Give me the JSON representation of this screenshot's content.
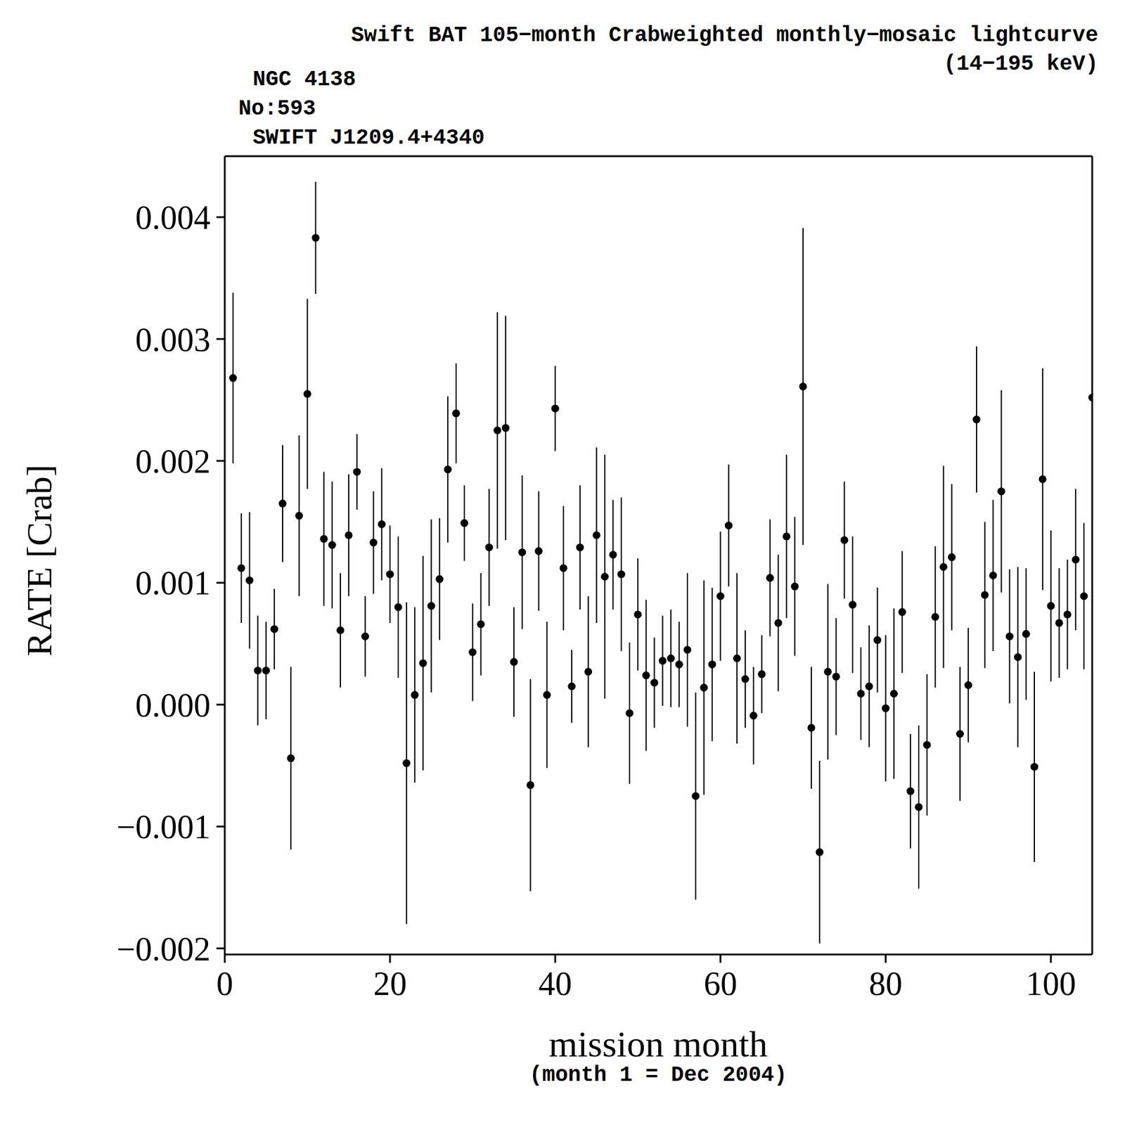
{
  "chart_data": {
    "type": "scatter",
    "title": "Swift BAT 105−month Crabweighted monthly−mosaic lightcurve",
    "subtitle": "(14−195 keV)",
    "annotations": [
      "NGC 4138",
      "No:593",
      "SWIFT J1209.4+4340"
    ],
    "x_label": "mission month",
    "x_sublabel": "(month 1 = Dec 2004)",
    "y_label": "RATE [Crab]",
    "color": "#000000",
    "marker": "circle",
    "xlim": [
      0,
      105
    ],
    "xticks": [
      0,
      20,
      40,
      60,
      80,
      100
    ],
    "ylim": [
      -0.00205,
      0.0045
    ],
    "yticks": [
      {
        "value": -0.002,
        "label": "−0.002"
      },
      {
        "value": -0.001,
        "label": "−0.001"
      },
      {
        "value": 0,
        "label": "0.000"
      },
      {
        "value": 0.001,
        "label": "0.001"
      },
      {
        "value": 0.002,
        "label": "0.002"
      },
      {
        "value": 0.003,
        "label": "0.003"
      },
      {
        "value": 0.004,
        "label": "0.004"
      }
    ],
    "x": [
      1,
      2,
      3,
      4,
      5,
      6,
      7,
      8,
      9,
      10,
      11,
      12,
      13,
      14,
      15,
      16,
      17,
      18,
      19,
      20,
      21,
      22,
      23,
      24,
      25,
      26,
      27,
      28,
      29,
      30,
      31,
      32,
      33,
      34,
      35,
      36,
      37,
      38,
      39,
      40,
      41,
      42,
      43,
      44,
      45,
      46,
      47,
      48,
      49,
      50,
      51,
      52,
      53,
      54,
      55,
      56,
      57,
      58,
      59,
      60,
      61,
      62,
      63,
      64,
      65,
      66,
      67,
      68,
      69,
      70,
      71,
      72,
      73,
      74,
      75,
      76,
      77,
      78,
      79,
      80,
      81,
      82,
      83,
      84,
      85,
      86,
      87,
      88,
      89,
      90,
      91,
      92,
      93,
      94,
      95,
      96,
      97,
      98,
      99,
      100,
      101,
      102,
      103,
      104,
      105
    ],
    "values": [
      0.00268,
      0.00112,
      0.00102,
      0.00028,
      0.00028,
      0.00062,
      0.00165,
      -0.00044,
      0.00155,
      0.00255,
      0.00383,
      0.00136,
      0.00131,
      0.00061,
      0.00139,
      0.00191,
      0.00056,
      0.00133,
      0.00148,
      0.00107,
      0.0008,
      -0.00048,
      8e-05,
      0.00034,
      0.00081,
      0.00103,
      0.00193,
      0.00239,
      0.00149,
      0.00043,
      0.00066,
      0.00129,
      0.00225,
      0.00227,
      0.00035,
      0.00125,
      -0.00066,
      0.00126,
      8e-05,
      0.00243,
      0.00112,
      0.00015,
      0.00129,
      0.00027,
      0.00139,
      0.00105,
      0.00123,
      0.00107,
      -7e-05,
      0.00074,
      0.00024,
      0.00018,
      0.00036,
      0.00038,
      0.00033,
      0.00045,
      -0.00075,
      0.00014,
      0.00033,
      0.00089,
      0.00147,
      0.00038,
      0.00021,
      -9e-05,
      0.00025,
      0.00104,
      0.00067,
      0.00138,
      0.00097,
      0.00261,
      -0.00019,
      -0.00121,
      0.00027,
      0.00023,
      0.00135,
      0.00082,
      9e-05,
      0.00015,
      0.00053,
      -3e-05,
      9e-05,
      0.00076,
      -0.00071,
      -0.00084,
      -0.00033,
      0.00072,
      0.00113,
      0.00121,
      -0.00024,
      0.00016,
      0.00234,
      0.0009,
      0.00106,
      0.00175,
      0.00056,
      0.00039,
      0.00058,
      -0.00051,
      0.00185,
      0.00081,
      0.00067,
      0.00074,
      0.00119,
      0.00089,
      0.00252
    ],
    "errors": [
      0.0007,
      0.00045,
      0.00056,
      0.00045,
      0.0004,
      0.00033,
      0.00048,
      0.00075,
      0.00066,
      0.00078,
      0.00046,
      0.00055,
      0.00052,
      0.00047,
      0.0005,
      0.00031,
      0.00033,
      0.00042,
      0.00046,
      0.0004,
      0.00058,
      0.00132,
      0.00072,
      0.00088,
      0.00071,
      0.0005,
      0.0006,
      0.00041,
      0.00031,
      0.0004,
      0.00042,
      0.00048,
      0.00097,
      0.00092,
      0.00045,
      0.00063,
      0.00087,
      0.00049,
      0.0006,
      0.00035,
      0.00051,
      0.0003,
      0.00051,
      0.00062,
      0.00072,
      0.001,
      0.00045,
      0.00063,
      0.00058,
      0.00046,
      0.00062,
      0.00037,
      0.00037,
      0.0004,
      0.00035,
      0.00063,
      0.00085,
      0.00088,
      0.00063,
      0.00053,
      0.0005,
      0.0007,
      0.0004,
      0.0004,
      0.00032,
      0.00048,
      0.00056,
      0.00067,
      0.00057,
      0.0013,
      0.0005,
      0.00075,
      0.00072,
      0.00048,
      0.00048,
      0.00056,
      0.00038,
      0.0005,
      0.00043,
      0.0006,
      0.0007,
      0.0005,
      0.00047,
      0.00067,
      0.00058,
      0.00058,
      0.00083,
      0.0006,
      0.00055,
      0.00047,
      0.0006,
      0.0006,
      0.00062,
      0.00083,
      0.00055,
      0.00074,
      0.00054,
      0.00078,
      0.00091,
      0.00062,
      0.00045,
      0.00045,
      0.00058,
      0.0006,
      0.0006
    ]
  }
}
